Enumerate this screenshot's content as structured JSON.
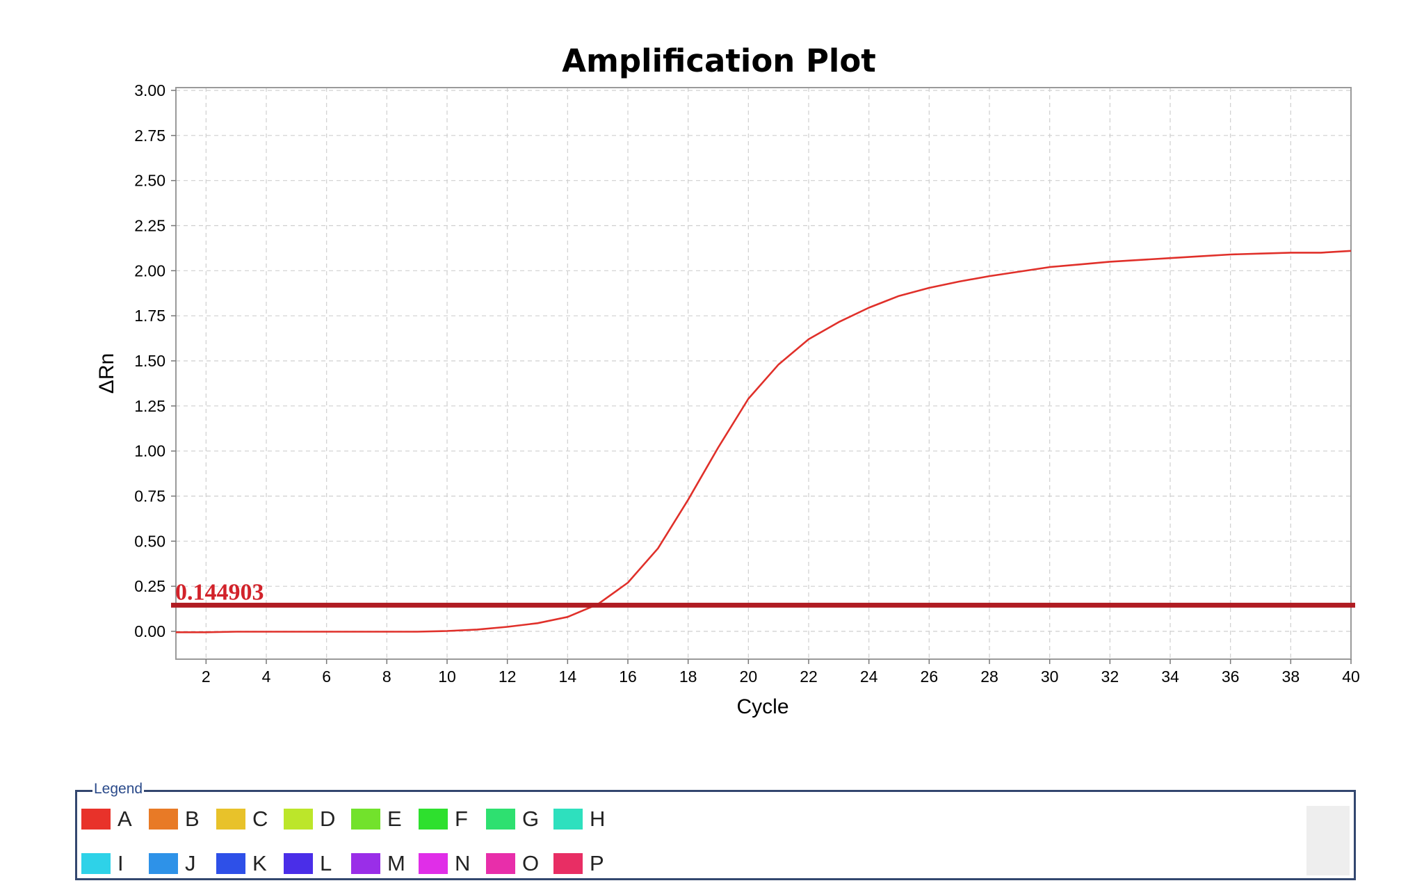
{
  "chart_data": {
    "type": "line",
    "title": "Amplification Plot",
    "xlabel": "Cycle",
    "ylabel": "ΔRn",
    "xlim": [
      1,
      40
    ],
    "ylim": [
      -0.15,
      3.0
    ],
    "x_ticks": [
      2,
      4,
      6,
      8,
      10,
      12,
      14,
      16,
      18,
      20,
      22,
      24,
      26,
      28,
      30,
      32,
      34,
      36,
      38,
      40
    ],
    "y_ticks": [
      0.0,
      0.25,
      0.5,
      0.75,
      1.0,
      1.25,
      1.5,
      1.75,
      2.0,
      2.25,
      2.5,
      2.75,
      3.0
    ],
    "y_tick_labels": [
      "0.00",
      "0.25",
      "0.50",
      "0.75",
      "1.00",
      "1.25",
      "1.50",
      "1.75",
      "2.00",
      "2.25",
      "2.50",
      "2.75",
      "3.00"
    ],
    "grid": true,
    "series": [
      {
        "color": "#e0302a",
        "x": [
          1,
          2,
          3,
          4,
          5,
          6,
          7,
          8,
          9,
          10,
          11,
          12,
          13,
          14,
          15,
          16,
          17,
          18,
          19,
          20,
          21,
          22,
          23,
          24,
          25,
          26,
          27,
          28,
          29,
          30,
          31,
          32,
          33,
          34,
          35,
          36,
          37,
          38,
          39,
          40
        ],
        "y": [
          -0.005,
          -0.005,
          -0.002,
          -0.002,
          -0.002,
          -0.002,
          -0.002,
          -0.002,
          -0.002,
          0.002,
          0.01,
          0.025,
          0.045,
          0.08,
          0.15,
          0.27,
          0.46,
          0.73,
          1.02,
          1.29,
          1.48,
          1.62,
          1.715,
          1.795,
          1.86,
          1.905,
          1.94,
          1.97,
          1.995,
          2.02,
          2.035,
          2.05,
          2.06,
          2.07,
          2.08,
          2.09,
          2.095,
          2.1,
          2.1,
          2.11
        ]
      }
    ],
    "threshold": {
      "value": 0.144903,
      "label": "0.144903",
      "color": "#b01c22"
    }
  },
  "legend": {
    "title": "Legend",
    "items": [
      {
        "label": "A",
        "color": "#e8322a"
      },
      {
        "label": "B",
        "color": "#e87a26"
      },
      {
        "label": "C",
        "color": "#e8c22a"
      },
      {
        "label": "D",
        "color": "#bce62a"
      },
      {
        "label": "E",
        "color": "#72e22c"
      },
      {
        "label": "F",
        "color": "#2ee02e"
      },
      {
        "label": "G",
        "color": "#2ee070"
      },
      {
        "label": "H",
        "color": "#2ee0be"
      },
      {
        "label": "I",
        "color": "#2ed2e8"
      },
      {
        "label": "J",
        "color": "#2e92e8"
      },
      {
        "label": "K",
        "color": "#2e50e8"
      },
      {
        "label": "L",
        "color": "#4a2ee8"
      },
      {
        "label": "M",
        "color": "#9a2ee8"
      },
      {
        "label": "N",
        "color": "#e02ee8"
      },
      {
        "label": "O",
        "color": "#e82eaa"
      },
      {
        "label": "P",
        "color": "#e82e64"
      }
    ]
  }
}
